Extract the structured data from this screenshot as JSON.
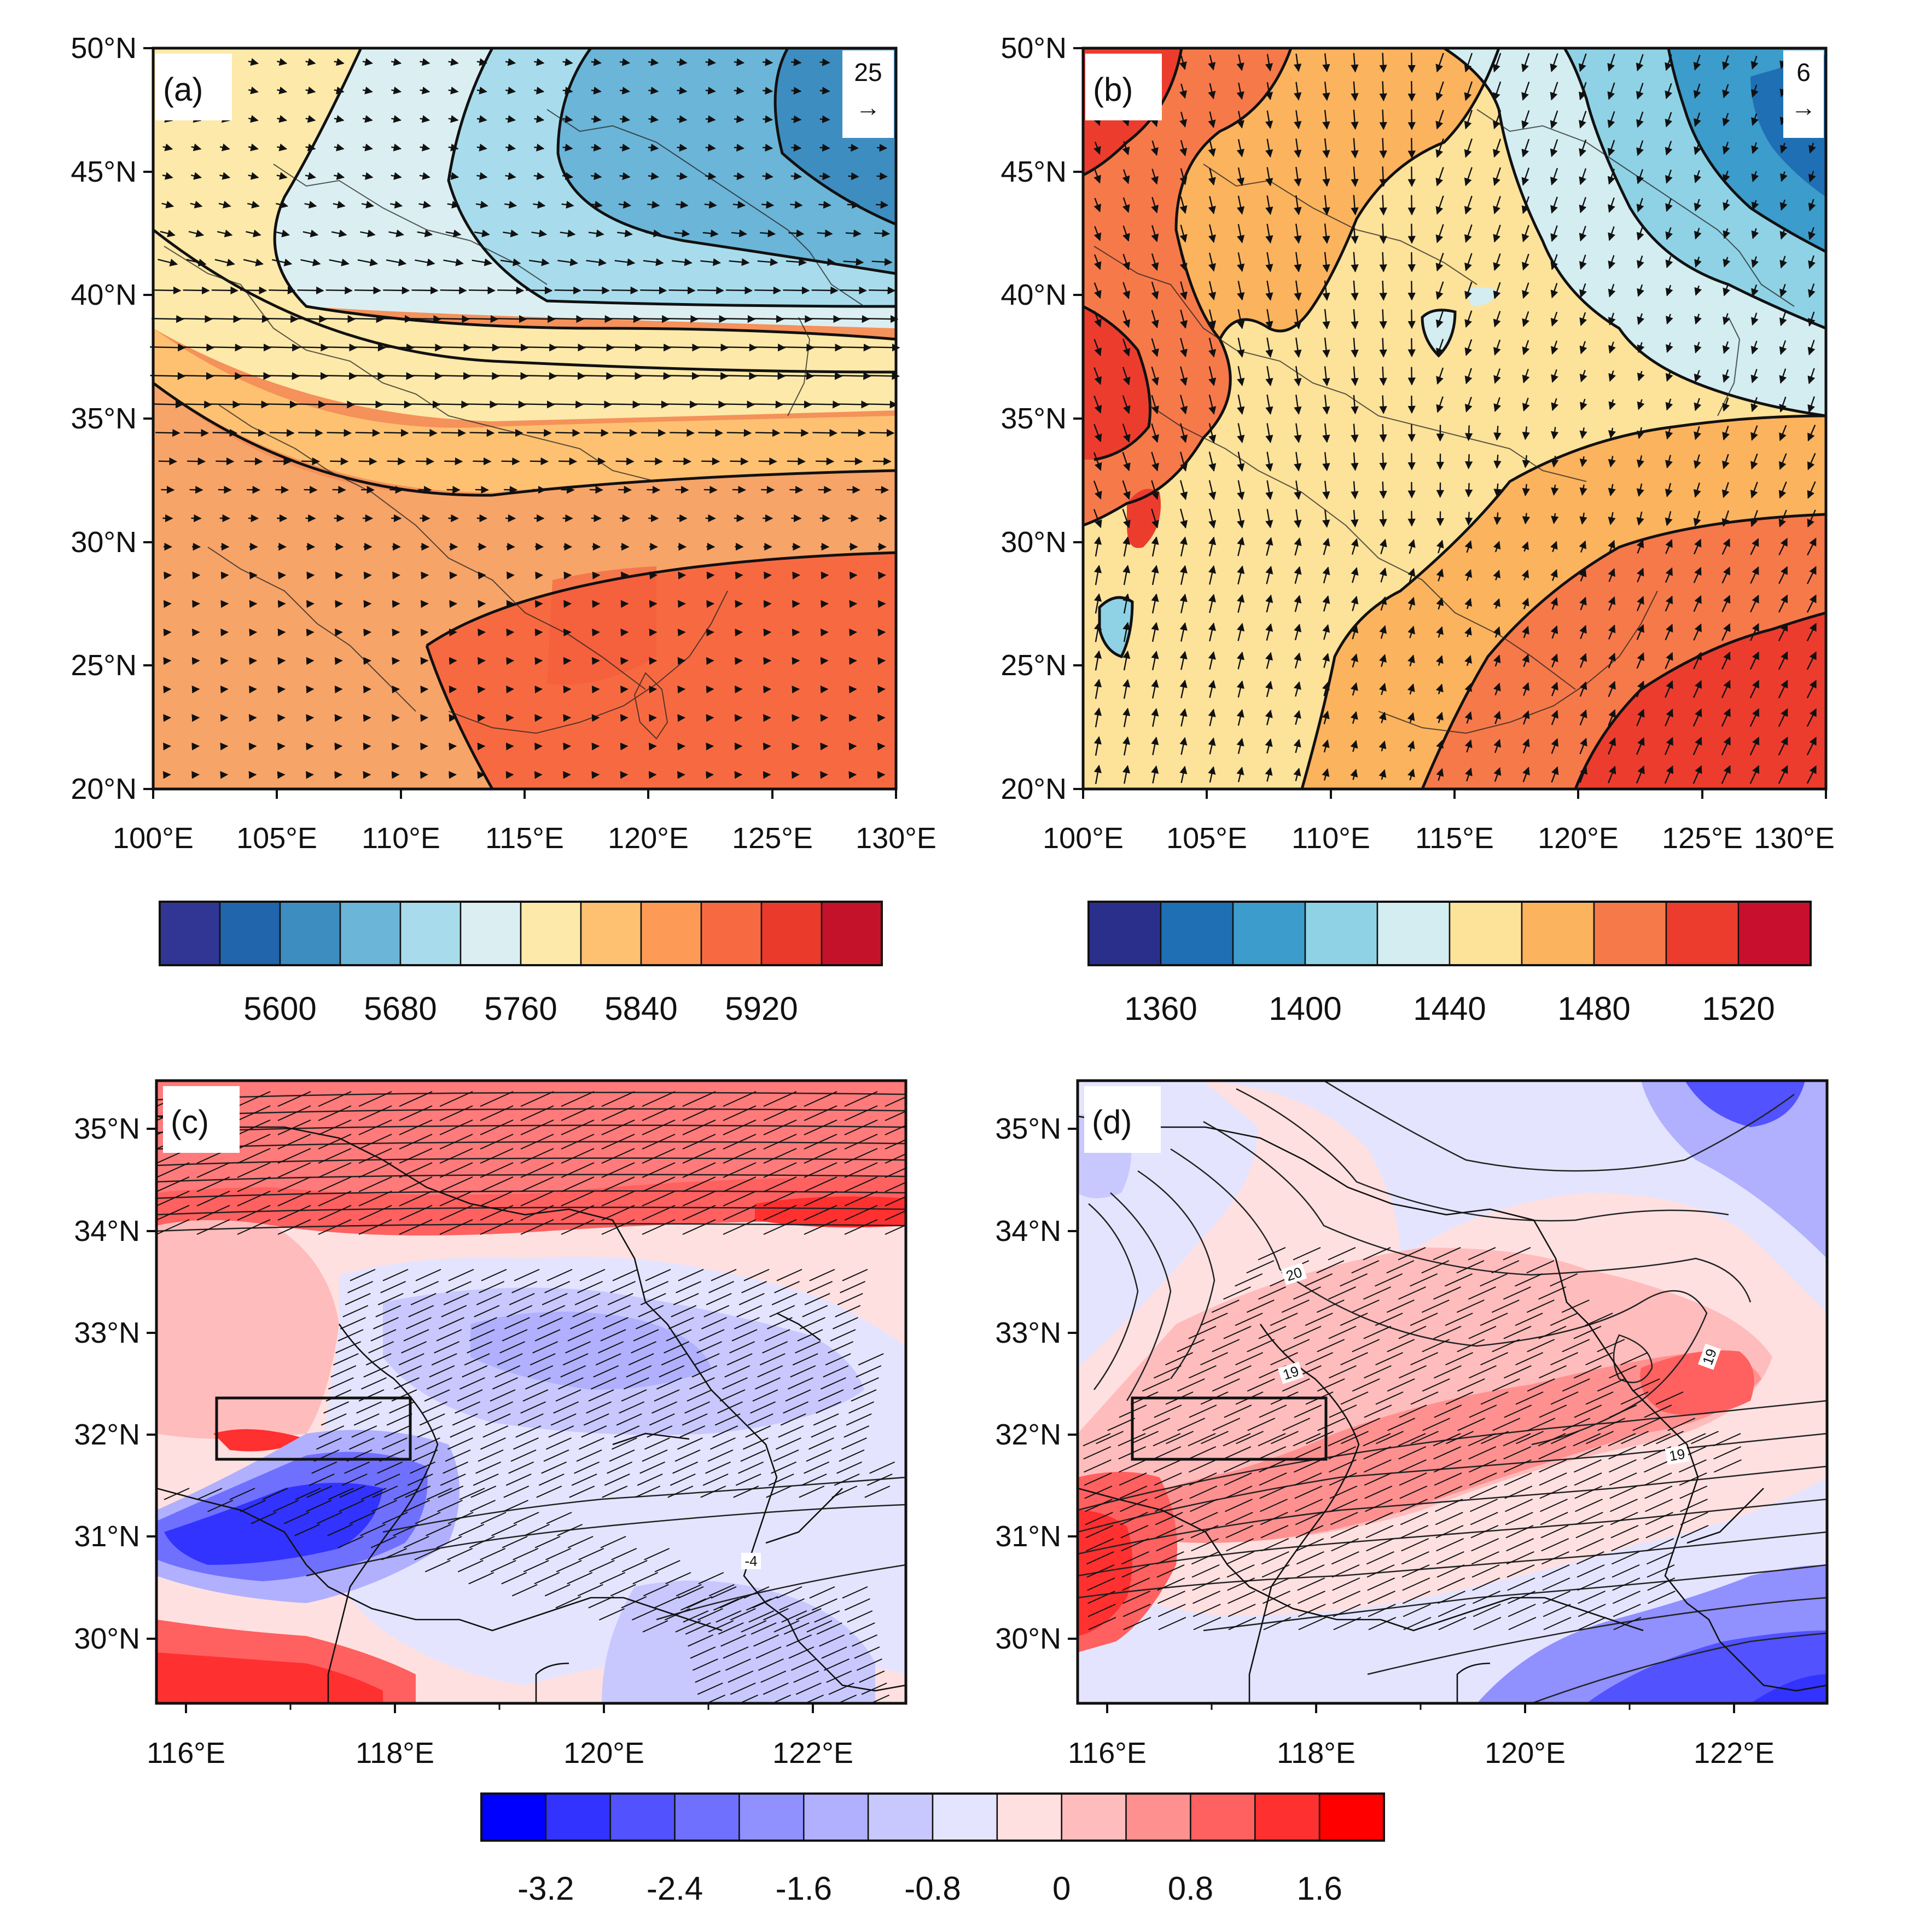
{
  "panels": {
    "a": {
      "label": "(a)",
      "lat_ticks": [
        "50°N",
        "45°N",
        "40°N",
        "35°N",
        "30°N",
        "25°N",
        "20°N"
      ],
      "lon_ticks": [
        "100°E",
        "105°E",
        "110°E",
        "115°E",
        "120°E",
        "125°E",
        "130°E"
      ],
      "ref_vector_value": "25",
      "ref_vector_arrow": "→",
      "colorbar": {
        "colors": [
          "#313695",
          "#2166ac",
          "#3e8dc1",
          "#6bb5d8",
          "#a8dcec",
          "#dbeff2",
          "#fde9a9",
          "#fdc171",
          "#fc9a56",
          "#f76a41",
          "#ea3a2c",
          "#c4122a"
        ],
        "labels": [
          "5600",
          "5680",
          "5760",
          "5840",
          "5920"
        ]
      }
    },
    "b": {
      "label": "(b)",
      "lat_ticks": [
        "50°N",
        "45°N",
        "40°N",
        "35°N",
        "30°N",
        "25°N",
        "20°N"
      ],
      "lon_ticks": [
        "100°E",
        "105°E",
        "110°E",
        "115°E",
        "120°E",
        "125°E",
        "130°E"
      ],
      "ref_vector_value": "6",
      "ref_vector_arrow": "→",
      "colorbar": {
        "colors": [
          "#2b2f8c",
          "#1f6fb4",
          "#3c9ccb",
          "#8fd2e5",
          "#d3edf1",
          "#fde29a",
          "#fbb35e",
          "#f6794a",
          "#ec3c2e",
          "#c8102e"
        ],
        "labels": [
          "1360",
          "1400",
          "1440",
          "1480",
          "1520"
        ]
      }
    },
    "c": {
      "label": "(c)",
      "lat_ticks": [
        "35°N",
        "34°N",
        "33°N",
        "32°N",
        "31°N",
        "30°N"
      ],
      "lon_ticks": [
        "116°E",
        "118°E",
        "120°E",
        "122°E"
      ],
      "contour_labels": [
        "-4"
      ]
    },
    "d": {
      "label": "(d)",
      "lat_ticks": [
        "35°N",
        "34°N",
        "33°N",
        "32°N",
        "31°N",
        "30°N"
      ],
      "lon_ticks": [
        "116°E",
        "118°E",
        "120°E",
        "122°E"
      ],
      "contour_labels": [
        "20",
        "19",
        "19",
        "19"
      ]
    }
  },
  "bottom_colorbar": {
    "colors": [
      "#0000ff",
      "#3333ff",
      "#5252ff",
      "#7070ff",
      "#9090ff",
      "#b0b0ff",
      "#c8c8ff",
      "#e4e4ff",
      "#ffe0e0",
      "#ffbcbc",
      "#ff9090",
      "#ff6060",
      "#ff3030",
      "#ff0000"
    ],
    "labels": [
      "-3.2",
      "-2.4",
      "-1.6",
      "-0.8",
      "0",
      "0.8",
      "1.6"
    ]
  }
}
